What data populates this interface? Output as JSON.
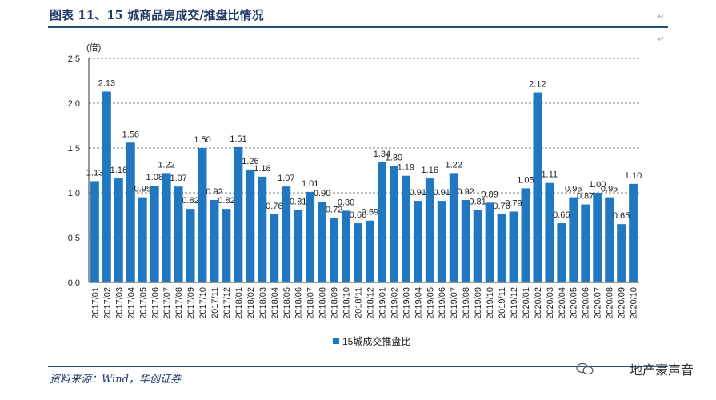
{
  "header": {
    "title": "图表 11、15 城商品房成交/推盘比情况"
  },
  "footer": {
    "source": "资料来源：Wind，华创证券",
    "watermark": "地产豪声音"
  },
  "chart_data": {
    "type": "bar",
    "title": "图表 11、15 城商品房成交/推盘比情况",
    "ylabel": "(倍)",
    "xlabel": "",
    "ylim": [
      0,
      2.5
    ],
    "yticks": [
      "0.0",
      "0.5",
      "1.0",
      "1.5",
      "2.0",
      "2.5"
    ],
    "grid": "horizontal dashed",
    "legend_position": "bottom-center",
    "color": "#1f78c1",
    "categories": [
      "2017/01",
      "2017/02",
      "2017/03",
      "2017/04",
      "2017/05",
      "2017/06",
      "2017/07",
      "2017/08",
      "2017/09",
      "2017/10",
      "2017/11",
      "2017/12",
      "2018/01",
      "2018/02",
      "2018/03",
      "2018/04",
      "2018/05",
      "2018/06",
      "2018/07",
      "2018/08",
      "2018/09",
      "2018/10",
      "2018/11",
      "2018/12",
      "2019/01",
      "2019/02",
      "2019/03",
      "2019/04",
      "2019/05",
      "2019/06",
      "2019/07",
      "2019/08",
      "2019/09",
      "2019/10",
      "2019/11",
      "2019/12",
      "2020/01",
      "2020/02",
      "2020/03",
      "2020/04",
      "2020/05",
      "2020/06",
      "2020/07",
      "2020/08",
      "2020/09",
      "2020/10"
    ],
    "series": [
      {
        "name": "15城成交推盘比",
        "values": [
          1.13,
          2.13,
          1.16,
          1.56,
          0.95,
          1.08,
          1.22,
          1.07,
          0.82,
          1.5,
          0.92,
          0.82,
          1.51,
          1.26,
          1.18,
          0.76,
          1.07,
          0.81,
          1.01,
          0.9,
          0.72,
          0.8,
          0.66,
          0.69,
          1.34,
          1.3,
          1.19,
          0.91,
          1.16,
          0.91,
          1.22,
          0.92,
          0.81,
          0.89,
          0.76,
          0.79,
          1.05,
          2.12,
          1.11,
          0.66,
          0.95,
          0.87,
          1.0,
          0.95,
          0.65,
          1.1
        ],
        "labels": [
          "1.13",
          "2.13",
          "1.16",
          "1.56",
          "0.95",
          "1.08",
          "1.22",
          "1.07",
          "0.82",
          "1.50",
          "0.92",
          "0.82",
          "1.51",
          "1.26",
          "1.18",
          "0.76",
          "1.07",
          "0.81",
          "1.01",
          "0.90",
          "0.72",
          "0.80",
          "0.66",
          "0.69",
          "1.34",
          "1.30",
          "1.19",
          "0.91",
          "1.16",
          "0.91",
          "1.22",
          "0.92",
          "0.81",
          "0.89",
          "0.76",
          "0.79",
          "1.05",
          "2.12",
          "1.11",
          "0.66",
          "0.95",
          "0.87",
          "1.00",
          "0.95",
          "0.65",
          "1.10"
        ]
      }
    ]
  }
}
